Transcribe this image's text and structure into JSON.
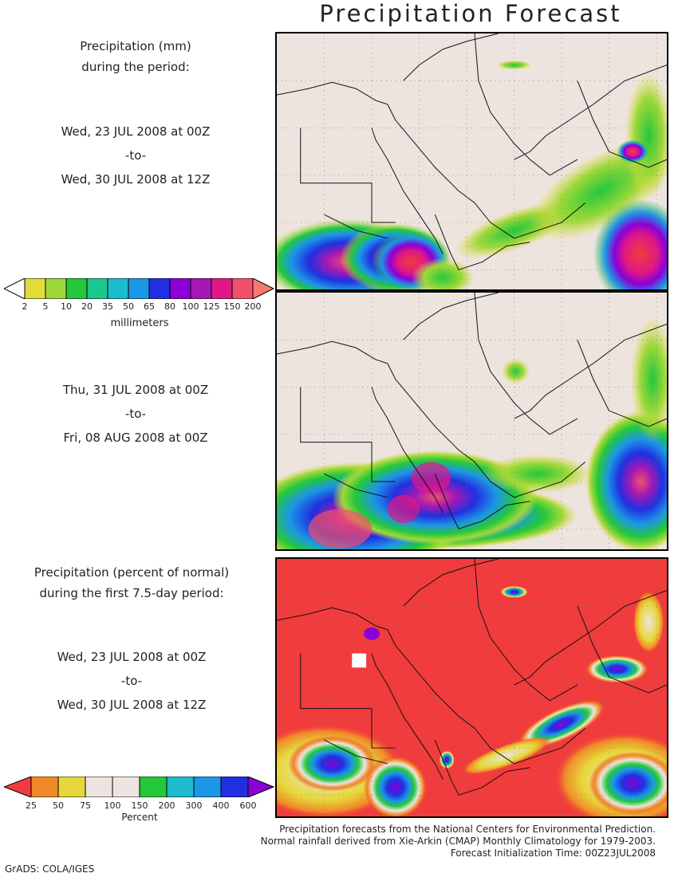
{
  "title": "Precipitation Forecast",
  "panel1": {
    "heading_line1": "Precipitation (mm)",
    "heading_line2": "during the period:",
    "start": "Wed, 23 JUL 2008 at 00Z",
    "sep": "-to-",
    "end": "Wed, 30 JUL 2008 at 12Z"
  },
  "panel2": {
    "start": "Thu, 31 JUL 2008 at 00Z",
    "sep": "-to-",
    "end": "Fri, 08 AUG 2008 at 00Z"
  },
  "panel3": {
    "heading_line1": "Precipitation (percent of normal)",
    "heading_line2": "during the first 7.5-day period:",
    "start": "Wed, 23 JUL 2008 at 00Z",
    "sep": "-to-",
    "end": "Wed, 30 JUL 2008 at 12Z"
  },
  "colorbar_mm": {
    "unit": "millimeters",
    "labels": [
      "2",
      "5",
      "10",
      "20",
      "35",
      "50",
      "65",
      "80",
      "100",
      "125",
      "150",
      "200"
    ],
    "colors": [
      "#ffffff",
      "#e1dc3a",
      "#9ed83a",
      "#24c83a",
      "#19c88c",
      "#1cbccc",
      "#1c96e6",
      "#2030e0",
      "#8a00d6",
      "#a418b4",
      "#e01884",
      "#f0506e",
      "#f87a6e"
    ]
  },
  "colorbar_pct": {
    "unit": "Percent",
    "labels": [
      "25",
      "50",
      "75",
      "100",
      "150",
      "200",
      "300",
      "400",
      "600"
    ],
    "colors": [
      "#f03c3c",
      "#f08a28",
      "#e6d83a",
      "#ede4df",
      "#ede4df",
      "#24c83a",
      "#1cbccc",
      "#1c96e6",
      "#2030e0",
      "#8a00d6"
    ]
  },
  "credits": {
    "line1": "Precipitation forecasts from the National Centers for Environmental Prediction.",
    "line2": "Normal rainfall derived from Xie-Arkin (CMAP) Monthly Climatology for 1979-2003.",
    "line3": "Forecast Initialization Time: 00Z23JUL2008"
  },
  "footer": "GrADS: COLA/IGES",
  "colors": {
    "land": "#ede4df",
    "dry": "#f03c3c"
  }
}
